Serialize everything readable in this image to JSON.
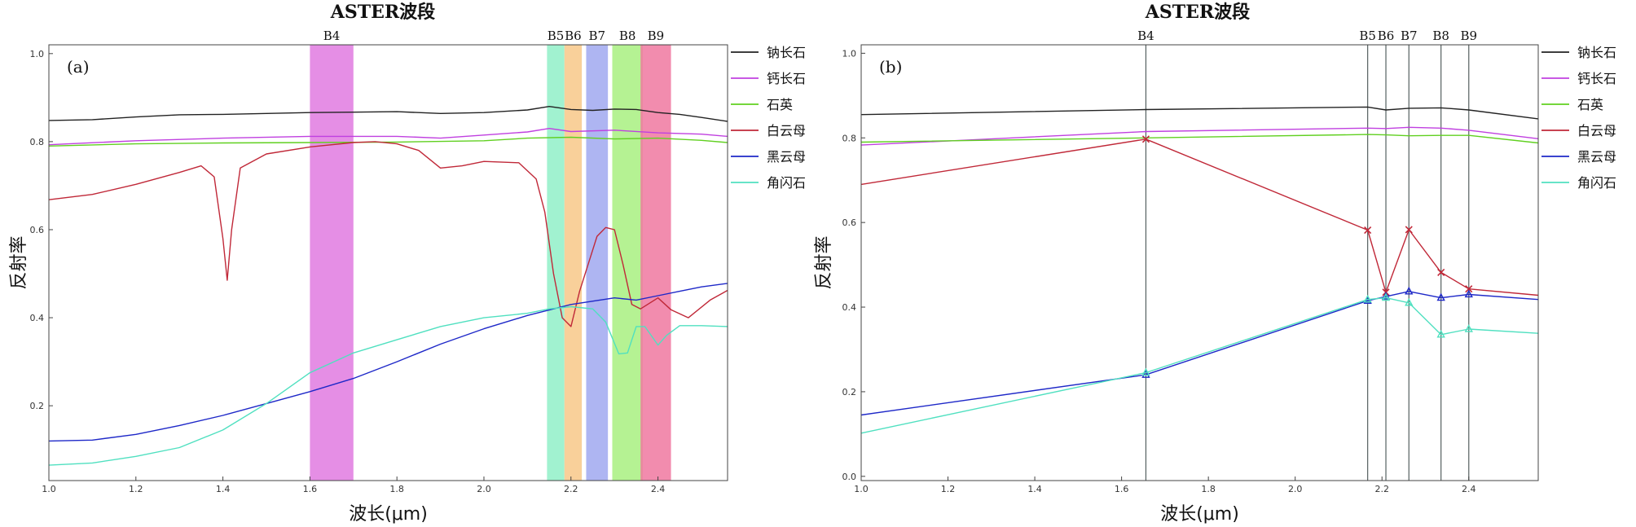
{
  "chart_data": [
    {
      "panel": "(a)",
      "type": "line",
      "title": "ASTER波段",
      "xlabel": "波长(μm)",
      "ylabel": "反射率",
      "xlim": [
        1.0,
        2.56
      ],
      "ylim": [
        0.03,
        1.02
      ],
      "x_ticks": [
        1.0,
        1.2,
        1.4,
        1.6,
        1.8,
        2.0,
        2.2,
        2.4
      ],
      "y_ticks": [
        0.2,
        0.4,
        0.6,
        0.8,
        1.0
      ],
      "legend_position": "right",
      "bands": [
        {
          "label": "B4",
          "x0": 1.6,
          "x1": 1.7,
          "color": "#e07ae0"
        },
        {
          "label": "B5",
          "x0": 2.145,
          "x1": 2.185,
          "color": "#90f0c8"
        },
        {
          "label": "B6",
          "x0": 2.185,
          "x1": 2.225,
          "color": "#f8c888"
        },
        {
          "label": "B7",
          "x0": 2.235,
          "x1": 2.285,
          "color": "#a0a8f0"
        },
        {
          "label": "B8",
          "x0": 2.295,
          "x1": 2.365,
          "color": "#a8f080"
        },
        {
          "label": "B9",
          "x0": 2.36,
          "x1": 2.43,
          "color": "#f078a0"
        }
      ],
      "series": [
        {
          "name": "钠长石",
          "color": "#222222",
          "x": [
            1.0,
            1.1,
            1.2,
            1.3,
            1.4,
            1.5,
            1.6,
            1.7,
            1.8,
            1.9,
            2.0,
            2.1,
            2.15,
            2.2,
            2.25,
            2.3,
            2.35,
            2.4,
            2.45,
            2.5,
            2.56
          ],
          "y": [
            0.848,
            0.85,
            0.856,
            0.861,
            0.862,
            0.864,
            0.866,
            0.867,
            0.868,
            0.864,
            0.866,
            0.872,
            0.88,
            0.873,
            0.871,
            0.874,
            0.873,
            0.866,
            0.862,
            0.855,
            0.846
          ]
        },
        {
          "name": "钙长石",
          "color": "#c040e0",
          "x": [
            1.0,
            1.2,
            1.4,
            1.6,
            1.8,
            1.9,
            2.0,
            2.1,
            2.15,
            2.2,
            2.3,
            2.4,
            2.5,
            2.56
          ],
          "y": [
            0.793,
            0.802,
            0.808,
            0.812,
            0.812,
            0.808,
            0.815,
            0.822,
            0.83,
            0.823,
            0.826,
            0.82,
            0.817,
            0.812
          ]
        },
        {
          "name": "石英",
          "color": "#60d020",
          "x": [
            1.0,
            1.2,
            1.4,
            1.6,
            1.8,
            2.0,
            2.1,
            2.2,
            2.3,
            2.4,
            2.5,
            2.56
          ],
          "y": [
            0.79,
            0.795,
            0.797,
            0.798,
            0.799,
            0.802,
            0.808,
            0.81,
            0.806,
            0.808,
            0.803,
            0.798
          ]
        },
        {
          "name": "白云母",
          "color": "#c02838",
          "x": [
            1.0,
            1.1,
            1.2,
            1.3,
            1.35,
            1.38,
            1.4,
            1.41,
            1.42,
            1.44,
            1.5,
            1.6,
            1.7,
            1.75,
            1.8,
            1.85,
            1.9,
            1.95,
            2.0,
            2.08,
            2.12,
            2.14,
            2.16,
            2.18,
            2.2,
            2.22,
            2.26,
            2.28,
            2.3,
            2.32,
            2.34,
            2.36,
            2.4,
            2.43,
            2.47,
            2.52,
            2.56
          ],
          "y": [
            0.668,
            0.68,
            0.703,
            0.73,
            0.745,
            0.72,
            0.58,
            0.485,
            0.6,
            0.74,
            0.772,
            0.788,
            0.798,
            0.8,
            0.795,
            0.78,
            0.74,
            0.745,
            0.755,
            0.752,
            0.715,
            0.64,
            0.5,
            0.4,
            0.38,
            0.46,
            0.585,
            0.605,
            0.6,
            0.52,
            0.43,
            0.42,
            0.445,
            0.418,
            0.4,
            0.44,
            0.462
          ]
        },
        {
          "name": "黑云母",
          "color": "#1e28c8",
          "x": [
            1.0,
            1.1,
            1.2,
            1.3,
            1.4,
            1.5,
            1.6,
            1.7,
            1.8,
            1.9,
            2.0,
            2.1,
            2.2,
            2.3,
            2.35,
            2.4,
            2.45,
            2.5,
            2.56
          ],
          "y": [
            0.12,
            0.122,
            0.135,
            0.155,
            0.178,
            0.205,
            0.232,
            0.262,
            0.3,
            0.34,
            0.375,
            0.405,
            0.43,
            0.445,
            0.44,
            0.45,
            0.46,
            0.47,
            0.478
          ]
        },
        {
          "name": "角闪石",
          "color": "#50e0c0",
          "x": [
            1.0,
            1.1,
            1.2,
            1.3,
            1.4,
            1.5,
            1.6,
            1.7,
            1.8,
            1.9,
            2.0,
            2.1,
            2.15,
            2.2,
            2.25,
            2.28,
            2.31,
            2.33,
            2.35,
            2.37,
            2.4,
            2.42,
            2.45,
            2.5,
            2.56
          ],
          "y": [
            0.065,
            0.07,
            0.085,
            0.105,
            0.145,
            0.205,
            0.275,
            0.32,
            0.35,
            0.38,
            0.4,
            0.41,
            0.42,
            0.425,
            0.42,
            0.39,
            0.318,
            0.32,
            0.38,
            0.38,
            0.338,
            0.36,
            0.382,
            0.382,
            0.38
          ]
        }
      ]
    },
    {
      "panel": "(b)",
      "type": "line",
      "title": "ASTER波段",
      "xlabel": "波长(μm)",
      "ylabel": "反射率",
      "xlim": [
        1.0,
        2.56
      ],
      "ylim": [
        -0.01,
        1.02
      ],
      "x_ticks": [
        1.0,
        1.2,
        1.4,
        1.6,
        1.8,
        2.0,
        2.2,
        2.4
      ],
      "y_ticks": [
        0.0,
        0.2,
        0.4,
        0.6,
        0.8,
        1.0
      ],
      "legend_position": "right",
      "band_lines": [
        {
          "label": "B4",
          "x": 1.656
        },
        {
          "label": "B5",
          "x": 2.167
        },
        {
          "label": "B6",
          "x": 2.209
        },
        {
          "label": "B7",
          "x": 2.262
        },
        {
          "label": "B8",
          "x": 2.336
        },
        {
          "label": "B9",
          "x": 2.4
        }
      ],
      "series": [
        {
          "name": "钠长石",
          "color": "#222222",
          "x": [
            1.0,
            1.656,
            2.167,
            2.209,
            2.262,
            2.336,
            2.4,
            2.56
          ],
          "y": [
            0.855,
            0.867,
            0.873,
            0.866,
            0.87,
            0.871,
            0.866,
            0.845
          ]
        },
        {
          "name": "钙长石",
          "color": "#c040e0",
          "x": [
            1.0,
            1.656,
            2.167,
            2.209,
            2.262,
            2.336,
            2.4,
            2.56
          ],
          "y": [
            0.783,
            0.815,
            0.823,
            0.822,
            0.825,
            0.823,
            0.818,
            0.798
          ]
        },
        {
          "name": "石英",
          "color": "#60d020",
          "x": [
            1.0,
            1.656,
            2.167,
            2.209,
            2.262,
            2.336,
            2.4,
            2.56
          ],
          "y": [
            0.79,
            0.8,
            0.808,
            0.807,
            0.805,
            0.806,
            0.806,
            0.788
          ]
        },
        {
          "name": "白云母",
          "color": "#c02838",
          "marker": "x",
          "x": [
            1.0,
            1.656,
            2.167,
            2.209,
            2.262,
            2.336,
            2.4,
            2.56
          ],
          "y": [
            0.69,
            0.797,
            0.582,
            0.435,
            0.583,
            0.482,
            0.443,
            0.428
          ]
        },
        {
          "name": "黑云母",
          "color": "#1e28c8",
          "marker": "triangle",
          "x": [
            1.0,
            1.656,
            2.167,
            2.209,
            2.262,
            2.336,
            2.4,
            2.56
          ],
          "y": [
            0.145,
            0.24,
            0.415,
            0.425,
            0.437,
            0.422,
            0.43,
            0.418
          ]
        },
        {
          "name": "角闪石",
          "color": "#50e0c0",
          "marker": "triangle",
          "x": [
            1.0,
            1.656,
            2.167,
            2.209,
            2.262,
            2.336,
            2.4,
            2.56
          ],
          "y": [
            0.102,
            0.245,
            0.418,
            0.422,
            0.41,
            0.335,
            0.348,
            0.338
          ]
        }
      ]
    }
  ]
}
